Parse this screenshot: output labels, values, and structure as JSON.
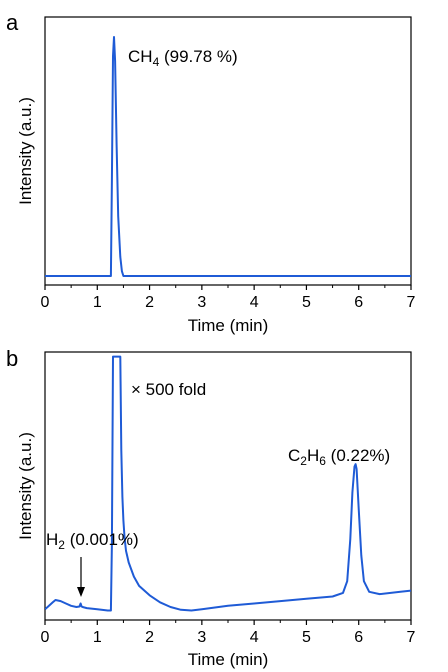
{
  "colors": {
    "trace": "#1f5bd6",
    "axis": "#000000",
    "background": "#ffffff"
  },
  "chart_data": [
    {
      "type": "line",
      "panel_label": "a",
      "xlabel": "Time (min)",
      "ylabel": "Intensity (a.u.)",
      "xlim": [
        0,
        7
      ],
      "xticks": [
        "0",
        "1",
        "2",
        "3",
        "4",
        "5",
        "6",
        "7"
      ],
      "yticks_shown": false,
      "grid": false,
      "annotations": [
        {
          "species": "CH",
          "subscript": "4",
          "value": " (99.78 %)",
          "x": 1.32,
          "y": 0.97
        }
      ],
      "series": [
        {
          "x": [
            0,
            1.0,
            1.26,
            1.28,
            1.3,
            1.32,
            1.34,
            1.37,
            1.4,
            1.44,
            1.47,
            1.5,
            1.6,
            3,
            5,
            7
          ],
          "y": [
            0,
            0,
            0,
            0.4,
            0.92,
            1.0,
            0.9,
            0.55,
            0.25,
            0.08,
            0.02,
            0,
            0,
            0,
            0,
            0
          ]
        }
      ]
    },
    {
      "type": "line",
      "panel_label": "b",
      "xlabel": "Time (min)",
      "ylabel": "Intensity (a.u.)",
      "xlim": [
        0,
        7
      ],
      "xticks": [
        "0",
        "1",
        "2",
        "3",
        "4",
        "5",
        "6",
        "7"
      ],
      "yticks_shown": false,
      "grid": false,
      "annotations": [
        {
          "label": "× 500 fold",
          "x": 1.6,
          "y": 0.86
        },
        {
          "species": "C",
          "subscript": "2",
          "species2": "H",
          "subscript2": "6",
          "value": " (0.22%)",
          "x": 5.94,
          "y": 0.68
        },
        {
          "species": "H",
          "subscript": "2",
          "value": " (0.001%)",
          "x": 0.68,
          "y": 0.06
        }
      ],
      "series": [
        {
          "x": [
            0,
            0.05,
            0.1,
            0.15,
            0.2,
            0.3,
            0.4,
            0.5,
            0.6,
            0.66,
            0.68,
            0.7,
            0.72,
            0.8,
            1.0,
            1.2,
            1.26,
            1.28,
            1.3,
            1.44,
            1.46,
            1.48,
            1.5,
            1.52,
            1.55,
            1.6,
            1.7,
            1.8,
            2.0,
            2.2,
            2.4,
            2.6,
            2.8,
            3.0,
            3.5,
            4.0,
            4.5,
            5.0,
            5.5,
            5.7,
            5.78,
            5.84,
            5.88,
            5.92,
            5.94,
            5.96,
            6.0,
            6.05,
            6.1,
            6.2,
            6.4,
            6.8,
            7.0
          ],
          "y": [
            0.02,
            0.03,
            0.04,
            0.05,
            0.06,
            0.055,
            0.045,
            0.035,
            0.03,
            0.032,
            0.045,
            0.032,
            0.03,
            0.025,
            0.02,
            0.015,
            0.015,
            0.3,
            1.1,
            1.1,
            0.7,
            0.5,
            0.4,
            0.33,
            0.27,
            0.22,
            0.16,
            0.12,
            0.08,
            0.05,
            0.03,
            0.018,
            0.015,
            0.02,
            0.035,
            0.045,
            0.055,
            0.065,
            0.075,
            0.09,
            0.14,
            0.32,
            0.52,
            0.63,
            0.64,
            0.62,
            0.45,
            0.25,
            0.14,
            0.095,
            0.085,
            0.095,
            0.1
          ]
        }
      ]
    }
  ]
}
